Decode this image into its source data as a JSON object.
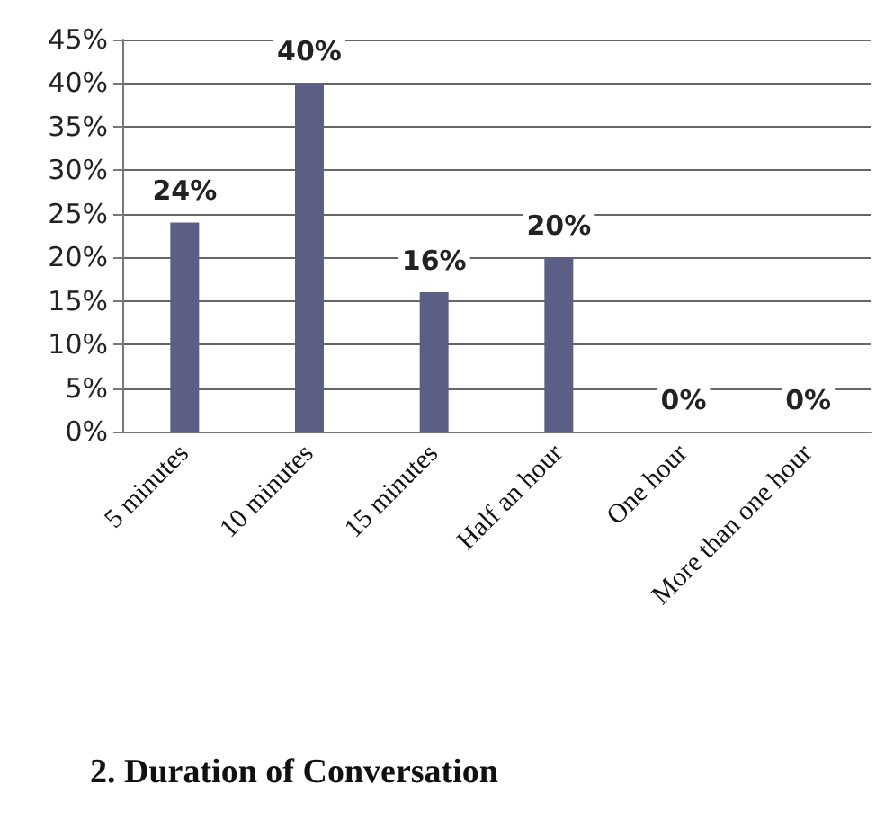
{
  "chart_data": {
    "type": "bar",
    "title": "2. Duration of Conversation",
    "categories": [
      "5 minutes",
      "10 minutes",
      "15 minutes",
      "Half an hour",
      "One hour",
      "More than one hour"
    ],
    "values": [
      24,
      40,
      16,
      20,
      0,
      0
    ],
    "value_labels": [
      "24%",
      "40%",
      "16%",
      "20%",
      "0%",
      "0%"
    ],
    "color": "#5b5f86",
    "ylim": [
      0,
      45
    ],
    "yticks": [
      {
        "value": 0,
        "label": "0%"
      },
      {
        "value": 5,
        "label": "5%"
      },
      {
        "value": 10,
        "label": "10%"
      },
      {
        "value": 15,
        "label": "15%"
      },
      {
        "value": 20,
        "label": "20%"
      },
      {
        "value": 25,
        "label": "25%"
      },
      {
        "value": 30,
        "label": "30%"
      },
      {
        "value": 35,
        "label": "35%"
      },
      {
        "value": 40,
        "label": "40%"
      },
      {
        "value": 45,
        "label": "45%"
      }
    ],
    "grid": "y"
  }
}
